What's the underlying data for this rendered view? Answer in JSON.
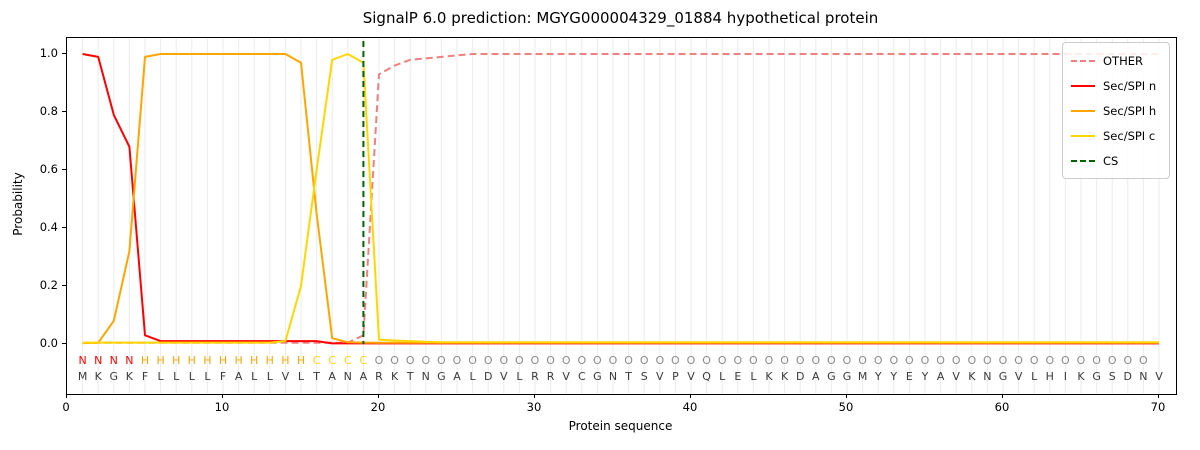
{
  "title": "SignalP 6.0 prediction: MGYG000004329_01884 hypothetical protein",
  "chart_data": {
    "type": "line",
    "title": "SignalP 6.0 prediction: MGYG000004329_01884 hypothetical protein",
    "xlabel": "Protein sequence",
    "ylabel": "Probability",
    "x_ticks": [
      0,
      10,
      20,
      30,
      40,
      50,
      60,
      70
    ],
    "y_ticks": [
      0.0,
      0.2,
      0.4,
      0.6,
      0.8,
      1.0
    ],
    "y_tick_labels": [
      "0.0",
      "0.2",
      "0.4",
      "0.6",
      "0.8",
      "1.0"
    ],
    "xlim": [
      0,
      71
    ],
    "ylim": [
      0,
      1.0
    ],
    "grid": "vertical line at every residue position, light gray",
    "legend_position": "upper right",
    "cs_position": 19,
    "sequence": "MKGKFLLLLFALLVLTANARKTNGALDVLRRVCGNTSVPVQLELKKDAGGMYYEYAVKNGVLHIKGSDNV",
    "region_labels": "NNNNHHHHHHHHHHHCCCCOOOOOOOOOOOOOOOOOOOOOOOOOOOOOOOOOOOOOOOOOOOOOOOOOO",
    "region_colors": {
      "N": "#ff0000",
      "H": "#ffa500",
      "C": "#ffd700",
      "O": "#8a8a8a"
    },
    "sequence_color": "#3a3a3a",
    "series": [
      {
        "name": "OTHER",
        "color": "#f08080",
        "dash": true,
        "values": [
          0.004,
          0.004,
          0.004,
          0.004,
          0.004,
          0.004,
          0.004,
          0.004,
          0.004,
          0.004,
          0.004,
          0.004,
          0.004,
          0.004,
          0.004,
          0.004,
          0.004,
          0.005,
          0.03,
          0.93,
          0.96,
          0.98,
          0.985,
          0.99,
          0.995,
          1.0,
          1.0,
          1.0,
          1.0,
          1.0,
          1.0,
          1.0,
          1.0,
          1.0,
          1.0,
          1.0,
          1.0,
          1.0,
          1.0,
          1.0,
          1.0,
          1.0,
          1.0,
          1.0,
          1.0,
          1.0,
          1.0,
          1.0,
          1.0,
          1.0,
          1.0,
          1.0,
          1.0,
          1.0,
          1.0,
          1.0,
          1.0,
          1.0,
          1.0,
          1.0,
          1.0,
          1.0,
          1.0,
          1.0,
          1.0,
          1.0,
          1.0,
          1.0,
          1.0,
          1.0
        ]
      },
      {
        "name": "Sec/SPI n",
        "color": "#ff0000",
        "dash": false,
        "values": [
          1.0,
          0.99,
          0.79,
          0.68,
          0.03,
          0.01,
          0.01,
          0.01,
          0.01,
          0.01,
          0.01,
          0.01,
          0.01,
          0.01,
          0.01,
          0.01,
          0.002,
          0.002,
          0.002,
          0.002,
          0.002,
          0.002,
          0.002,
          0.002,
          0.002,
          0.002,
          0.002,
          0.002,
          0.002,
          0.002,
          0.002,
          0.002,
          0.002,
          0.002,
          0.002,
          0.002,
          0.002,
          0.002,
          0.002,
          0.002,
          0.002,
          0.002,
          0.002,
          0.002,
          0.002,
          0.002,
          0.002,
          0.002,
          0.002,
          0.002,
          0.002,
          0.002,
          0.002,
          0.002,
          0.002,
          0.002,
          0.002,
          0.002,
          0.002,
          0.002,
          0.002,
          0.002,
          0.002,
          0.002,
          0.002,
          0.002,
          0.002,
          0.002,
          0.002,
          0.002
        ]
      },
      {
        "name": "Sec/SPI h",
        "color": "#ffa500",
        "dash": false,
        "values": [
          0.003,
          0.004,
          0.08,
          0.32,
          0.99,
          1.0,
          1.0,
          1.0,
          1.0,
          1.0,
          1.0,
          1.0,
          1.0,
          1.0,
          0.97,
          0.45,
          0.02,
          0.006,
          0.005,
          0.004,
          0.004,
          0.004,
          0.004,
          0.004,
          0.004,
          0.004,
          0.004,
          0.004,
          0.004,
          0.004,
          0.004,
          0.004,
          0.004,
          0.004,
          0.004,
          0.004,
          0.004,
          0.004,
          0.004,
          0.004,
          0.004,
          0.004,
          0.004,
          0.004,
          0.004,
          0.004,
          0.004,
          0.004,
          0.004,
          0.004,
          0.004,
          0.004,
          0.004,
          0.004,
          0.004,
          0.004,
          0.004,
          0.004,
          0.004,
          0.004,
          0.004,
          0.004,
          0.004,
          0.004,
          0.004,
          0.004,
          0.004,
          0.004,
          0.004,
          0.004
        ]
      },
      {
        "name": "Sec/SPI c",
        "color": "#ffd700",
        "dash": false,
        "values": [
          0.005,
          0.005,
          0.005,
          0.005,
          0.005,
          0.005,
          0.005,
          0.005,
          0.005,
          0.005,
          0.005,
          0.005,
          0.005,
          0.01,
          0.2,
          0.6,
          0.98,
          1.0,
          0.97,
          0.015,
          0.012,
          0.01,
          0.008,
          0.006,
          0.006,
          0.006,
          0.006,
          0.006,
          0.006,
          0.006,
          0.006,
          0.006,
          0.006,
          0.006,
          0.006,
          0.006,
          0.006,
          0.006,
          0.006,
          0.006,
          0.006,
          0.006,
          0.006,
          0.006,
          0.006,
          0.006,
          0.006,
          0.006,
          0.006,
          0.006,
          0.006,
          0.006,
          0.006,
          0.006,
          0.006,
          0.006,
          0.006,
          0.006,
          0.006,
          0.006,
          0.006,
          0.006,
          0.006,
          0.006,
          0.006,
          0.006,
          0.006,
          0.006,
          0.006,
          0.006
        ]
      },
      {
        "name": "CS",
        "color": "#006400",
        "dash": true,
        "vline_x": 19
      }
    ]
  }
}
